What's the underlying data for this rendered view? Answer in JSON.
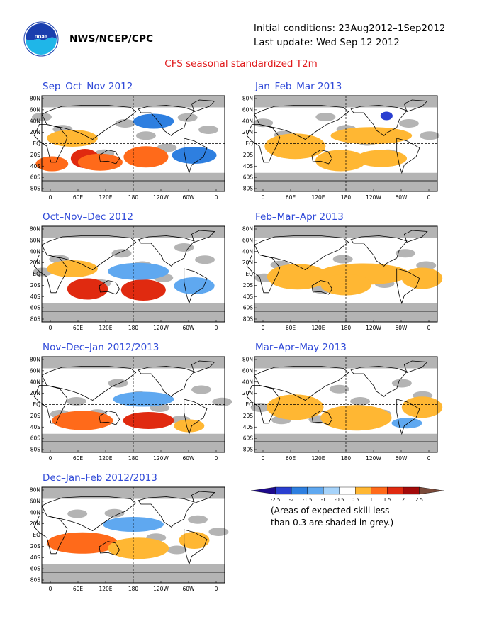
{
  "header": {
    "org": "NWS/NCEP/CPC",
    "initial_conditions": "Initial conditions: 23Aug2012–1Sep2012",
    "last_update": "Last update: Wed Sep 12 2012",
    "title": "CFS seasonal standardized T2m",
    "logo_icon": "noaa-logo-icon"
  },
  "lat_labels": [
    "80N",
    "60N",
    "40N",
    "20N",
    "EQ",
    "20S",
    "40S",
    "60S",
    "80S"
  ],
  "lon_labels": [
    "0",
    "60E",
    "120E",
    "180",
    "120W",
    "60W",
    "0"
  ],
  "panels": [
    {
      "title": "Sep–Oct–Nov 2012"
    },
    {
      "title": "Jan–Feb–Mar 2013"
    },
    {
      "title": "Oct–Nov–Dec 2012"
    },
    {
      "title": "Feb–Mar–Apr 2013"
    },
    {
      "title": "Nov–Dec–Jan 2012/2013"
    },
    {
      "title": "Mar–Apr–May 2013"
    },
    {
      "title": "Dec–Jan–Feb 2012/2013"
    }
  ],
  "legend": {
    "ticks": [
      "-2.5",
      "-2",
      "-1.5",
      "-1",
      "-0.5",
      "0.5",
      "1",
      "1.5",
      "2",
      "2.5"
    ],
    "colors": [
      "#1e0a8c",
      "#2a3fd0",
      "#2e7fe0",
      "#5fa8f0",
      "#a6d3fa",
      "#ffffff",
      "#ffb733",
      "#ff6a1a",
      "#e02a10",
      "#a30a0a",
      "#7a4a3a"
    ],
    "note_line1": "(Areas of expected skill less",
    "note_line2": "than 0.3 are shaded in grey.)"
  },
  "colors": {
    "grey_mask": "#b4b4b4",
    "title_red": "#e0181a",
    "panel_title_blue": "#2f49d8"
  }
}
